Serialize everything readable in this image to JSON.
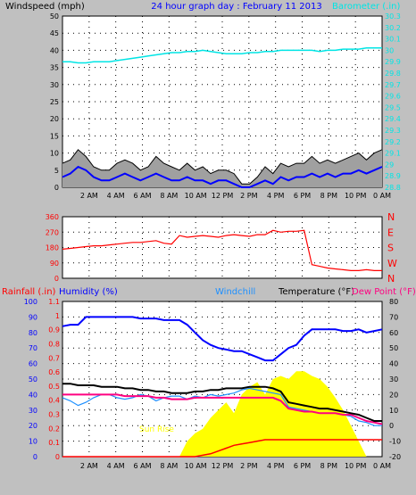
{
  "colors": {
    "background": "#c0c0c0",
    "plot_bg": "#ffffff",
    "wind_speed": "#0000ff",
    "wind_gust": "#000000",
    "wind_range": "#a0a0a0",
    "barometer": "#00e5e5",
    "direction": "#ff0000",
    "humidity": "#0000ff",
    "windchill": "#1e90ff",
    "temperature": "#000000",
    "dew_point": "#ff0080",
    "rainfall": "#ff0000",
    "solar": "#ffff00",
    "sun_text": "#ffff00"
  },
  "header": {
    "windspeed_label": "Windspeed (mph)",
    "title": "24 hour graph day : February 11 2013",
    "barometer_label": "Barometer (.in)"
  },
  "bottom_labels": {
    "rainfall": "Rainfall (.in)",
    "humidity": "Humidity (%)",
    "windchill": "Windchill",
    "temperature": "Temperature (°F)",
    "dew_point": "Dew Point (°F)",
    "sun_rise": "Sun Rise",
    "sun_set": "Set"
  },
  "chart_data": [
    {
      "type": "line",
      "panel": "wind",
      "x_ticks": [
        "2 AM",
        "4 AM",
        "6 AM",
        "8 AM",
        "10 AM",
        "12 PM",
        "2 PM",
        "4 PM",
        "6 PM",
        "8 PM",
        "10 PM",
        "0 AM"
      ],
      "ylim": [
        0,
        50
      ],
      "y_ticks": [
        "0",
        "5",
        "10",
        "15",
        "20",
        "25",
        "30",
        "35",
        "40",
        "45",
        "50"
      ],
      "y2lim": [
        28.8,
        30.3
      ],
      "y2_ticks": [
        "28.8",
        "28.9",
        "29",
        "29.1",
        "29.2",
        "29.3",
        "29.4",
        "29.5",
        "29.6",
        "29.7",
        "29.8",
        "29.9",
        "30",
        "30.1",
        "30.2",
        "30.3"
      ],
      "series": [
        {
          "name": "Windspeed (mph)",
          "values": [
            3,
            4,
            6,
            5,
            3,
            2,
            2,
            3,
            4,
            3,
            2,
            3,
            4,
            3,
            2,
            2,
            3,
            2,
            2,
            1,
            2,
            2,
            1,
            0,
            0,
            1,
            2,
            1,
            3,
            2,
            3,
            3,
            4,
            3,
            4,
            3,
            4,
            4,
            5,
            4,
            5,
            6
          ]
        },
        {
          "name": "Gust",
          "values": [
            7,
            8,
            11,
            9,
            6,
            5,
            5,
            7,
            8,
            7,
            5,
            6,
            9,
            7,
            6,
            5,
            7,
            5,
            6,
            4,
            5,
            5,
            4,
            1,
            1,
            3,
            6,
            4,
            7,
            6,
            7,
            7,
            9,
            7,
            8,
            7,
            8,
            9,
            10,
            8,
            10,
            11
          ]
        },
        {
          "name": "Barometer (.in)",
          "values": [
            29.9,
            29.9,
            29.89,
            29.89,
            29.9,
            29.9,
            29.9,
            29.91,
            29.92,
            29.93,
            29.94,
            29.95,
            29.96,
            29.97,
            29.98,
            29.98,
            29.99,
            29.99,
            30.0,
            29.99,
            29.98,
            29.97,
            29.97,
            29.97,
            29.98,
            29.98,
            29.99,
            29.99,
            30.0,
            30.0,
            30.0,
            30.0,
            30.0,
            29.99,
            30.0,
            30.0,
            30.01,
            30.01,
            30.01,
            30.02,
            30.02,
            30.02
          ]
        }
      ]
    },
    {
      "type": "line",
      "panel": "direction",
      "ylim": [
        0,
        360
      ],
      "y_ticks": [
        "0",
        "90",
        "180",
        "270",
        "360"
      ],
      "y2_ticks": [
        "N",
        "W",
        "S",
        "E",
        "N"
      ],
      "series": [
        {
          "name": "Wind Direction",
          "values": [
            170,
            175,
            180,
            185,
            190,
            190,
            195,
            200,
            205,
            210,
            210,
            215,
            220,
            205,
            200,
            250,
            240,
            245,
            250,
            245,
            240,
            250,
            255,
            250,
            245,
            255,
            255,
            280,
            270,
            275,
            275,
            280,
            80,
            70,
            60,
            55,
            50,
            45,
            45,
            50,
            45,
            45
          ]
        }
      ]
    },
    {
      "type": "line",
      "panel": "temperature",
      "y_left_ticks": [
        "0",
        "10",
        "20",
        "30",
        "40",
        "50",
        "60",
        "70",
        "80",
        "90",
        "100"
      ],
      "y_rain_ticks": [
        "0",
        "0.1",
        "0.2",
        "0.3",
        "0.4",
        "0.5",
        "0.6",
        "0.7",
        "0.8",
        "0.9",
        "1",
        "1.1"
      ],
      "y_right_ticks": [
        "-20",
        "-10",
        "0",
        "10",
        "20",
        "30",
        "40",
        "50",
        "60",
        "70",
        "80"
      ],
      "temp_range": [
        -20,
        80
      ],
      "series": [
        {
          "name": "Humidity (%)",
          "values": [
            84,
            85,
            85,
            90,
            90,
            90,
            90,
            90,
            90,
            90,
            89,
            89,
            89,
            88,
            88,
            88,
            85,
            80,
            75,
            72,
            70,
            69,
            68,
            68,
            66,
            64,
            62,
            62,
            66,
            70,
            72,
            78,
            82,
            82,
            82,
            82,
            81,
            81,
            82,
            80,
            81,
            82
          ]
        },
        {
          "name": "Temperature (°F)",
          "values": [
            27,
            27,
            26,
            26,
            26,
            25,
            25,
            25,
            24,
            24,
            23,
            23,
            22,
            22,
            21,
            21,
            21,
            22,
            22,
            23,
            23,
            24,
            24,
            24,
            25,
            25,
            25,
            24,
            22,
            15,
            14,
            13,
            12,
            11,
            11,
            10,
            9,
            8,
            7,
            5,
            3,
            3
          ]
        },
        {
          "name": "Dew Point (°F)",
          "values": [
            20,
            20,
            20,
            20,
            20,
            20,
            20,
            20,
            19,
            19,
            19,
            19,
            18,
            18,
            17,
            17,
            17,
            18,
            18,
            18,
            18,
            18,
            18,
            18,
            18,
            18,
            18,
            18,
            16,
            11,
            10,
            9,
            9,
            8,
            8,
            8,
            7,
            7,
            5,
            3,
            2,
            1
          ]
        },
        {
          "name": "Windchill",
          "values": [
            18,
            16,
            13,
            15,
            18,
            20,
            20,
            18,
            17,
            18,
            20,
            19,
            16,
            18,
            19,
            19,
            17,
            19,
            18,
            20,
            19,
            20,
            21,
            23,
            24,
            23,
            22,
            21,
            20,
            12,
            11,
            10,
            9,
            8,
            8,
            8,
            7,
            6,
            3,
            2,
            0,
            0
          ]
        },
        {
          "name": "Rainfall (.in)",
          "values": [
            0,
            0,
            0,
            0,
            0,
            0,
            0,
            0,
            0,
            0,
            0,
            0,
            0,
            0,
            0,
            0,
            0,
            0,
            0.01,
            0.02,
            0.04,
            0.06,
            0.08,
            0.09,
            0.1,
            0.11,
            0.12,
            0.12,
            0.12,
            0.12,
            0.12,
            0.12,
            0.12,
            0.12,
            0.12,
            0.12,
            0.12,
            0.12,
            0.12,
            0.12,
            0.12,
            0.12
          ]
        },
        {
          "name": "Solar",
          "values": [
            0,
            0,
            0,
            0,
            0,
            0,
            0,
            0,
            0,
            0,
            0,
            0,
            0,
            0,
            0,
            0,
            10,
            15,
            18,
            25,
            30,
            35,
            28,
            40,
            45,
            48,
            40,
            50,
            52,
            50,
            55,
            55,
            52,
            50,
            45,
            38,
            30,
            20,
            10,
            0,
            0,
            0
          ]
        }
      ]
    }
  ]
}
